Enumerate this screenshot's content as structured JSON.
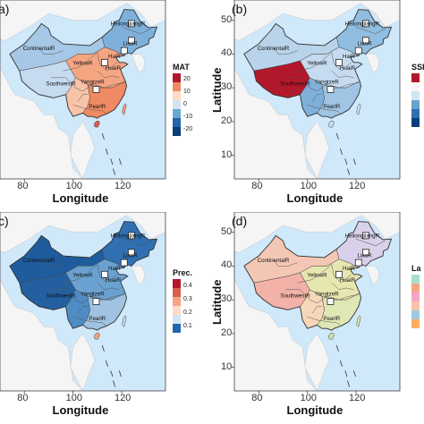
{
  "panels": [
    {
      "id": "a",
      "label": "a)",
      "legend_title": "MAT",
      "legend_ticks": [
        "20",
        "10",
        "0",
        "-10",
        "-20"
      ],
      "legend_colors": [
        "#b2182b",
        "#ef8a62",
        "#fddbc7",
        "#d1e5f0",
        "#67a9cf",
        "#2166ac",
        "#0b3c78"
      ],
      "map_colors": {
        "north": "#a6c8e6",
        "northeast": "#7fb0da",
        "tibet": "#c6dbef",
        "east": "#f4a582",
        "south": "#ef8a62",
        "southwest": "#f8c3a8",
        "hainan": "#d6604d",
        "taiwan": "#f4a582"
      },
      "x_ticks": [
        "80",
        "100",
        "120"
      ],
      "y_ticks": [],
      "x_title": "Longitude",
      "y_title": ""
    },
    {
      "id": "b",
      "label": "(b)",
      "legend_title": "SSI",
      "legend_ticks": [],
      "legend_colors": [
        "#b2182b",
        "#f7f7f7",
        "#d1e5f0",
        "#6aa1d0",
        "#2d6fb0",
        "#0b3c78"
      ],
      "map_colors": {
        "north": "#b9d3ea",
        "northeast": "#90bde0",
        "tibet": "#b2182b",
        "east": "#c6dbef",
        "south": "#a0c4e3",
        "southwest": "#7fb0da",
        "hainan": "#c6dbef",
        "taiwan": "#d1e5f0"
      },
      "x_ticks": [
        "80",
        "100",
        "120"
      ],
      "y_ticks": [
        "50",
        "40",
        "30",
        "20",
        "10"
      ],
      "x_title": "Longitude",
      "y_title": "Latitude"
    },
    {
      "id": "c",
      "label": "c)",
      "legend_title": "Prec.",
      "legend_ticks": [
        "0.4",
        "0.3",
        "0.2",
        "0.1"
      ],
      "legend_colors": [
        "#b2182b",
        "#d6604d",
        "#f4a582",
        "#fddbc7",
        "#d1e5f0",
        "#2166ac"
      ],
      "map_colors": {
        "north": "#1f5c9e",
        "northeast": "#2f6fb2",
        "tibet": "#24609f",
        "east": "#6aa1d0",
        "south": "#9fc3e1",
        "southwest": "#4f8bc4",
        "hainan": "#f4a582",
        "taiwan": "#c6dbef"
      },
      "x_ticks": [
        "80",
        "100",
        "120"
      ],
      "y_ticks": [],
      "x_title": "Longitude",
      "y_title": ""
    },
    {
      "id": "d",
      "label": "(d)",
      "legend_title": "La",
      "legend_ticks": [],
      "legend_colors": [
        "#a6e0c8",
        "#f4a582",
        "#f2a7c6",
        "#f8c3a8",
        "#9ecae1",
        "#fdae61"
      ],
      "map_colors": {
        "north": "#f4c7b5",
        "northeast": "#d9d0ea",
        "tibet": "#f2b2a8",
        "east": "#e8e6b0",
        "south": "#dfe7b4",
        "southwest": "#f7d7b9",
        "hainan": "#c8e3b2",
        "taiwan": "#e8e6b0"
      },
      "x_ticks": [
        "80",
        "100",
        "120"
      ],
      "y_ticks": [
        "50",
        "40",
        "30",
        "20",
        "10"
      ],
      "x_title": "Longitude",
      "y_title": "Latitude"
    }
  ],
  "region_labels": [
    "HeilongjiangR",
    "ContinentalR",
    "LiaoR",
    "HaiR",
    "YellowR",
    "HuaiR",
    "SouthwestR",
    "YangtzeR",
    "PearlR"
  ],
  "colors": {
    "ocean": "#cfe8fa",
    "land_outside": "#f5f5f5",
    "border": "#333333"
  }
}
